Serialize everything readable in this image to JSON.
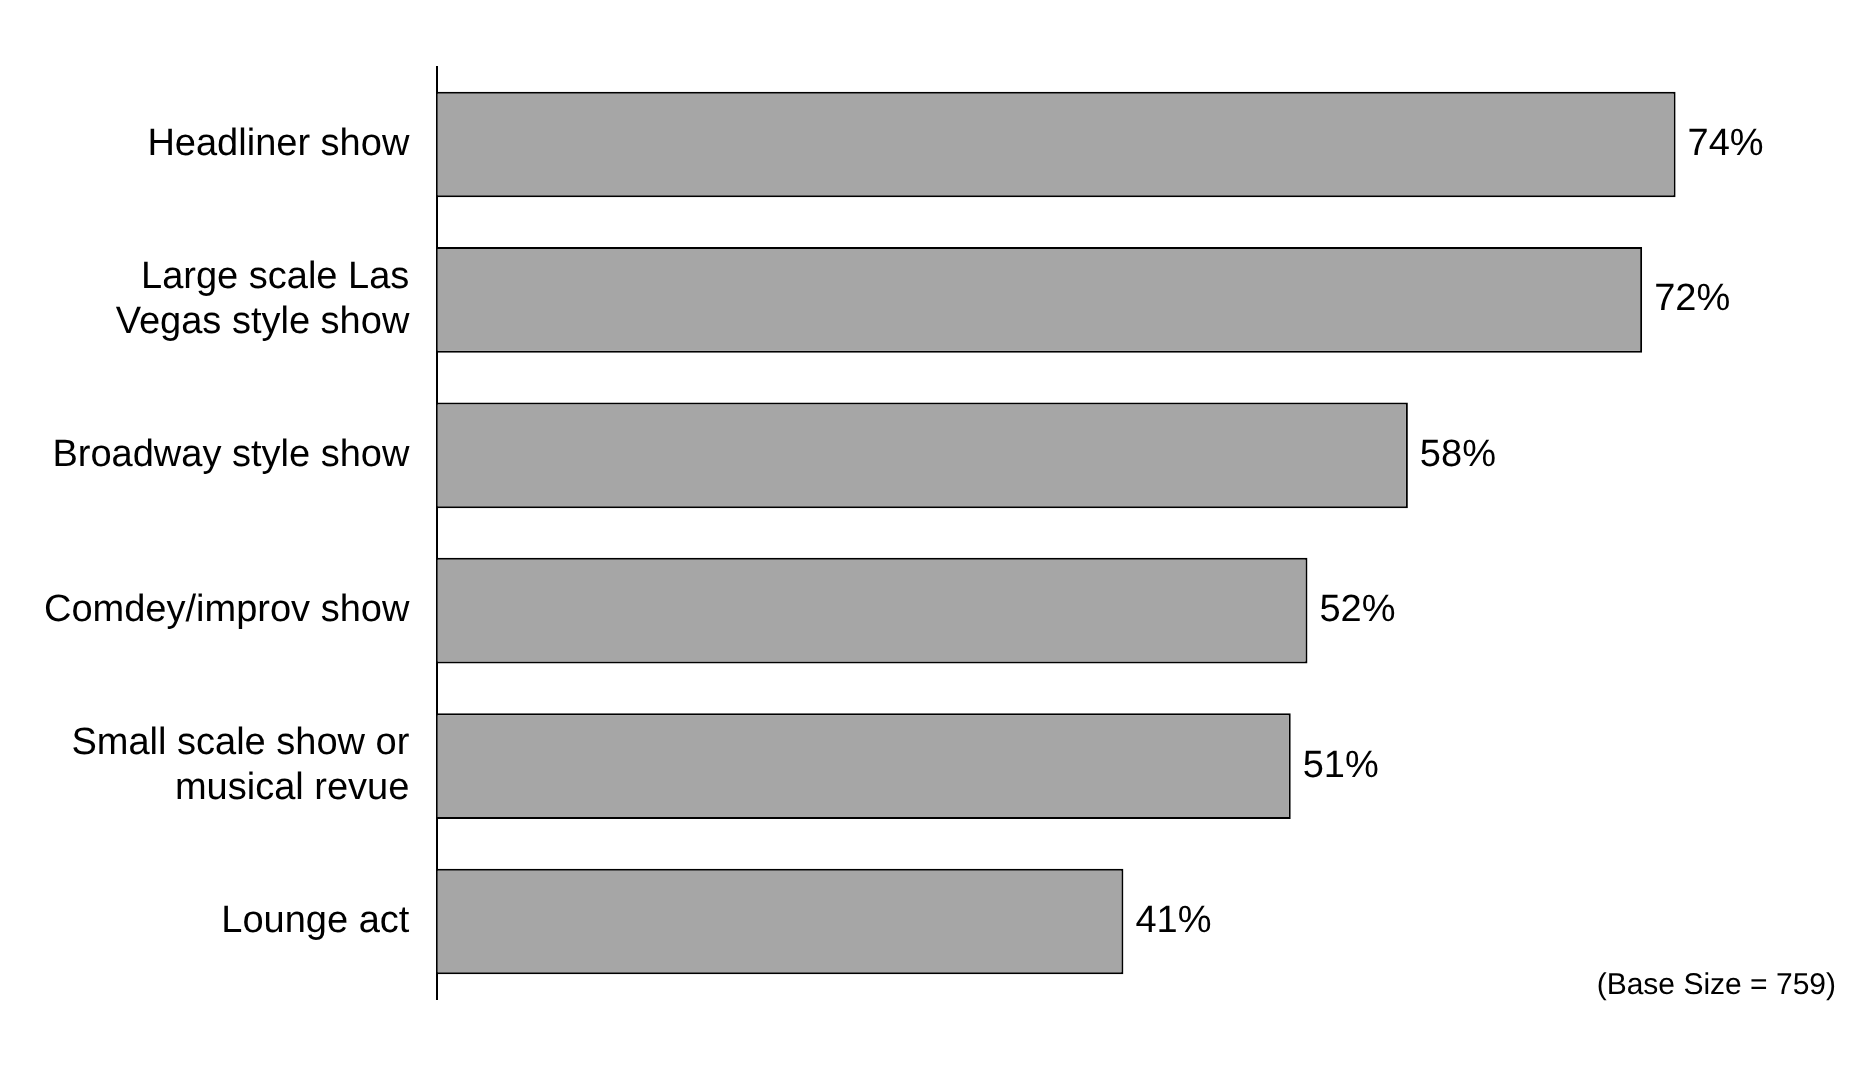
{
  "chart_data": {
    "type": "bar",
    "orientation": "horizontal",
    "categories": [
      "Headliner show",
      "Large scale Las Vegas style show",
      "Broadway style show",
      "Comdey/improv show",
      "Small scale show or musical revue",
      "Lounge act"
    ],
    "values": [
      74,
      72,
      58,
      52,
      51,
      41
    ],
    "value_labels": [
      "74%",
      "72%",
      "58%",
      "52%",
      "51%",
      "41%"
    ],
    "color": "#a6a6a6",
    "legend": false,
    "tick_labels": "y",
    "annotations": [
      "(Base Size = 759)"
    ]
  }
}
